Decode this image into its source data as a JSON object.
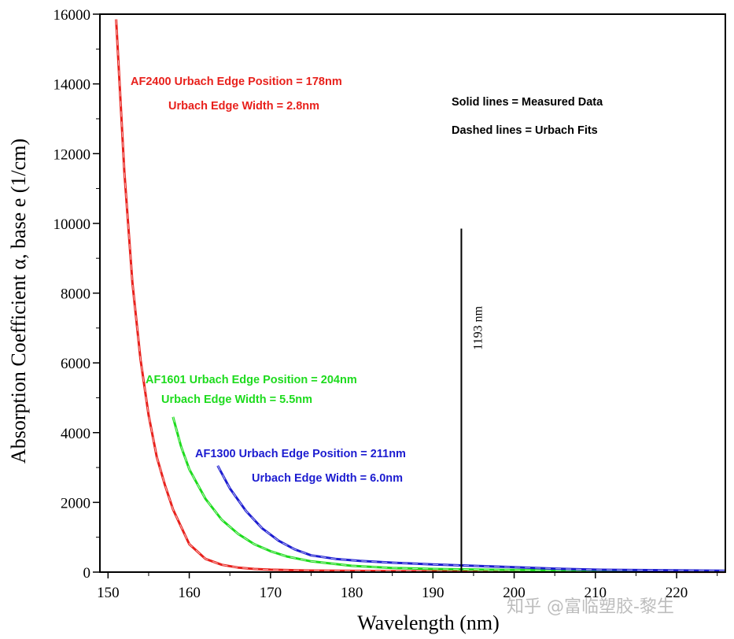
{
  "chart_data": {
    "type": "line",
    "xlabel": "Wavelength (nm)",
    "ylabel": "Absorption Coefficient α, base e (1/cm)",
    "xlim": [
      149,
      226
    ],
    "ylim": [
      0,
      16000
    ],
    "xticks": [
      150,
      160,
      170,
      180,
      190,
      200,
      210,
      220
    ],
    "yticks": [
      0,
      2000,
      4000,
      6000,
      8000,
      10000,
      12000,
      14000,
      16000
    ],
    "grid": false,
    "series": [
      {
        "name": "AF2400",
        "color": "#e8211c",
        "x": [
          151,
          152,
          153,
          154,
          155,
          156,
          157,
          158,
          159,
          160,
          162,
          164,
          166,
          168,
          170,
          175,
          180,
          190,
          200,
          210,
          220,
          226
        ],
        "y": [
          15850,
          11500,
          8300,
          6100,
          4500,
          3300,
          2500,
          1800,
          1300,
          800,
          380,
          210,
          130,
          90,
          70,
          45,
          35,
          25,
          20,
          15,
          10,
          8
        ]
      },
      {
        "name": "AF1601",
        "color": "#1ddb1d",
        "x": [
          158,
          159,
          160,
          162,
          164,
          166,
          168,
          170,
          172,
          175,
          180,
          185,
          190,
          200,
          210,
          220,
          226
        ],
        "y": [
          4450,
          3600,
          2950,
          2100,
          1500,
          1100,
          800,
          600,
          450,
          310,
          180,
          120,
          90,
          60,
          40,
          30,
          25
        ]
      },
      {
        "name": "AF1300",
        "color": "#1c1cd0",
        "x": [
          163.5,
          165,
          167,
          169,
          171,
          173,
          175,
          178,
          181,
          185,
          190,
          195,
          200,
          205,
          210,
          220,
          226
        ],
        "y": [
          3050,
          2400,
          1750,
          1250,
          900,
          650,
          480,
          380,
          320,
          270,
          220,
          180,
          140,
          100,
          70,
          50,
          40
        ]
      }
    ],
    "annotations": {
      "af2400_position": "AF2400 Urbach Edge Position = 178nm",
      "af2400_width": "Urbach Edge Width = 2.8nm",
      "af1601_position": "AF1601 Urbach Edge Position = 204nm",
      "af1601_width": "Urbach Edge Width = 5.5nm",
      "af1300_position": "AF1300 Urbach Edge Position = 211nm",
      "af1300_width": "Urbach Edge Width = 6.0nm",
      "legend_solid": "Solid lines = Measured Data",
      "legend_dashed": "Dashed lines = Urbach Fits"
    },
    "marker": {
      "x": 193.5,
      "y_top": 9850,
      "label": "1193 nm"
    }
  },
  "watermark": "知乎 @富临塑胶-黎生"
}
